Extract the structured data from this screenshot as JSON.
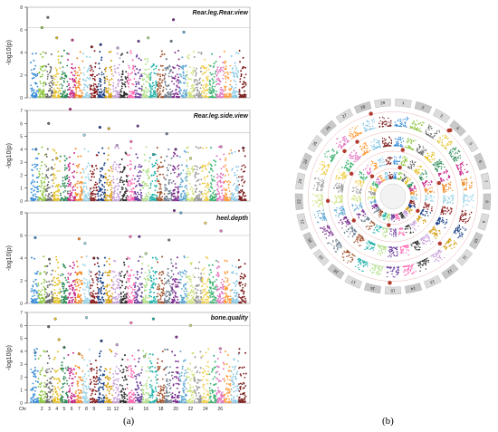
{
  "figure": {
    "label_a": "(a)",
    "label_b": "(b)"
  },
  "colors": [
    "#3a8fd8",
    "#8dc63f",
    "#6b6b6b",
    "#e6c229",
    "#2e8b57",
    "#c62a8a",
    "#f28c28",
    "#9ad3e6",
    "#8b1e1e",
    "#1a3f86",
    "#d4a017",
    "#c9a0dc",
    "#2f2f2f",
    "#ff69b4",
    "#6a3d9a",
    "#b2df8a",
    "#20b2aa",
    "#a0522d",
    "#708090",
    "#7b2d8e",
    "#5fa8d3",
    "#cde27c",
    "#999999",
    "#f0d050",
    "#3cb371",
    "#e377c2",
    "#ff9f40",
    "#8ecae6",
    "#7d1f1f"
  ],
  "chart_data": [
    {
      "type": "scatter",
      "title": "Rear.leg.Rear.view",
      "ylabel": "-log10(p)",
      "ylim": [
        0,
        8
      ],
      "yticks": [
        0,
        2,
        4,
        6,
        8
      ],
      "threshold": 6.2,
      "chromosomes": 29,
      "highlights": [
        {
          "chr": 2,
          "pos": 0.5,
          "y": 6.2
        },
        {
          "chr": 3,
          "pos": 0.3,
          "y": 7.1
        },
        {
          "chr": 4,
          "pos": 0.5,
          "y": 5.3
        },
        {
          "chr": 6,
          "pos": 0.6,
          "y": 5.1
        },
        {
          "chr": 9,
          "pos": 0.2,
          "y": 4.5
        },
        {
          "chr": 10,
          "pos": 0.4,
          "y": 4.7
        },
        {
          "chr": 12,
          "pos": 0.7,
          "y": 4.4
        },
        {
          "chr": 15,
          "pos": 0.5,
          "y": 5.0
        },
        {
          "chr": 16,
          "pos": 0.8,
          "y": 5.3
        },
        {
          "chr": 19,
          "pos": 0.9,
          "y": 5.0
        },
        {
          "chr": 20,
          "pos": 0.2,
          "y": 6.9
        },
        {
          "chr": 21,
          "pos": 0.6,
          "y": 5.8
        }
      ]
    },
    {
      "type": "scatter",
      "title": "Rear.leg.side.view",
      "ylabel": "-log10(p)",
      "ylim": [
        0,
        7
      ],
      "yticks": [
        0,
        1,
        2,
        3,
        4,
        5,
        6,
        7
      ],
      "threshold": 5.3,
      "chromosomes": 29,
      "highlights": [
        {
          "chr": 1,
          "pos": 0.7,
          "y": 4.0
        },
        {
          "chr": 3,
          "pos": 0.4,
          "y": 6.0
        },
        {
          "chr": 4,
          "pos": 0.5,
          "y": 3.3
        },
        {
          "chr": 6,
          "pos": 0.3,
          "y": 7.1
        },
        {
          "chr": 8,
          "pos": 0.2,
          "y": 5.1
        },
        {
          "chr": 10,
          "pos": 0.3,
          "y": 5.7
        },
        {
          "chr": 11,
          "pos": 0.5,
          "y": 5.6
        },
        {
          "chr": 12,
          "pos": 0.6,
          "y": 4.3
        },
        {
          "chr": 14,
          "pos": 0.5,
          "y": 4.6
        },
        {
          "chr": 15,
          "pos": 0.4,
          "y": 5.8
        },
        {
          "chr": 17,
          "pos": 0.5,
          "y": 3.6
        },
        {
          "chr": 19,
          "pos": 0.3,
          "y": 5.2
        },
        {
          "chr": 20,
          "pos": 0.5,
          "y": 4.0
        },
        {
          "chr": 22,
          "pos": 0.5,
          "y": 3.3
        },
        {
          "chr": 26,
          "pos": 0.6,
          "y": 4.2
        },
        {
          "chr": 29,
          "pos": 0.6,
          "y": 4.1
        }
      ]
    },
    {
      "type": "scatter",
      "title": "heel.depth",
      "ylabel": "-log10(p)",
      "ylim": [
        0,
        8
      ],
      "yticks": [
        0,
        2,
        4,
        6,
        8
      ],
      "threshold": 6.0,
      "chromosomes": 29,
      "highlights": [
        {
          "chr": 1,
          "pos": 0.6,
          "y": 5.8
        },
        {
          "chr": 3,
          "pos": 0.5,
          "y": 3.9
        },
        {
          "chr": 7,
          "pos": 0.5,
          "y": 5.7
        },
        {
          "chr": 8,
          "pos": 0.3,
          "y": 5.3
        },
        {
          "chr": 9,
          "pos": 0.5,
          "y": 4.0
        },
        {
          "chr": 14,
          "pos": 0.4,
          "y": 5.9
        },
        {
          "chr": 15,
          "pos": 0.6,
          "y": 5.9
        },
        {
          "chr": 16,
          "pos": 0.5,
          "y": 4.4
        },
        {
          "chr": 19,
          "pos": 0.6,
          "y": 5.6
        },
        {
          "chr": 20,
          "pos": 0.3,
          "y": 8.2
        },
        {
          "chr": 21,
          "pos": 0.2,
          "y": 8.0
        },
        {
          "chr": 24,
          "pos": 0.5,
          "y": 7.1
        },
        {
          "chr": 26,
          "pos": 0.6,
          "y": 6.4
        }
      ]
    },
    {
      "type": "scatter",
      "title": "bone.quality",
      "ylabel": "-log10(p)",
      "ylim": [
        0,
        7
      ],
      "yticks": [
        0,
        1,
        2,
        3,
        4,
        5,
        6,
        7
      ],
      "threshold": 6.0,
      "chromosomes": 29,
      "xlabel_prefix": "Chr",
      "xticks": [
        "2",
        "3",
        "4",
        "5",
        "6",
        "7",
        "8",
        "9",
        "11",
        "12",
        "14",
        "16",
        "18",
        "20",
        "22",
        "24",
        "26"
      ],
      "xtick_chrs": [
        2,
        3,
        4,
        5,
        6,
        7,
        8,
        9,
        11,
        12,
        14,
        16,
        18,
        20,
        22,
        24,
        26
      ],
      "highlights": [
        {
          "chr": 1,
          "pos": 0.6,
          "y": 3.9
        },
        {
          "chr": 3,
          "pos": 0.4,
          "y": 5.9
        },
        {
          "chr": 4,
          "pos": 0.3,
          "y": 6.5
        },
        {
          "chr": 4,
          "pos": 0.8,
          "y": 4.9
        },
        {
          "chr": 5,
          "pos": 0.5,
          "y": 4.3
        },
        {
          "chr": 7,
          "pos": 0.5,
          "y": 3.8
        },
        {
          "chr": 8,
          "pos": 0.5,
          "y": 6.6
        },
        {
          "chr": 10,
          "pos": 0.5,
          "y": 4.8
        },
        {
          "chr": 12,
          "pos": 0.6,
          "y": 4.5
        },
        {
          "chr": 14,
          "pos": 0.5,
          "y": 6.2
        },
        {
          "chr": 16,
          "pos": 0.3,
          "y": 3.6
        },
        {
          "chr": 17,
          "pos": 0.5,
          "y": 6.5
        },
        {
          "chr": 20,
          "pos": 0.6,
          "y": 5.1
        },
        {
          "chr": 22,
          "pos": 0.5,
          "y": 6.0
        },
        {
          "chr": 26,
          "pos": 0.5,
          "y": 4.2
        }
      ]
    },
    {
      "type": "scatter",
      "subtype": "circular-manhattan",
      "ring_count": 4,
      "chromosomes": 29,
      "chromosome_labels": [
        "1",
        "2",
        "3",
        "4",
        "5",
        "6",
        "7",
        "8",
        "9",
        "10",
        "11",
        "12",
        "13",
        "14",
        "15",
        "16",
        "17",
        "18",
        "19",
        "20",
        "21",
        "22",
        "23",
        "24",
        "25",
        "26",
        "27",
        "28",
        "29"
      ]
    }
  ]
}
